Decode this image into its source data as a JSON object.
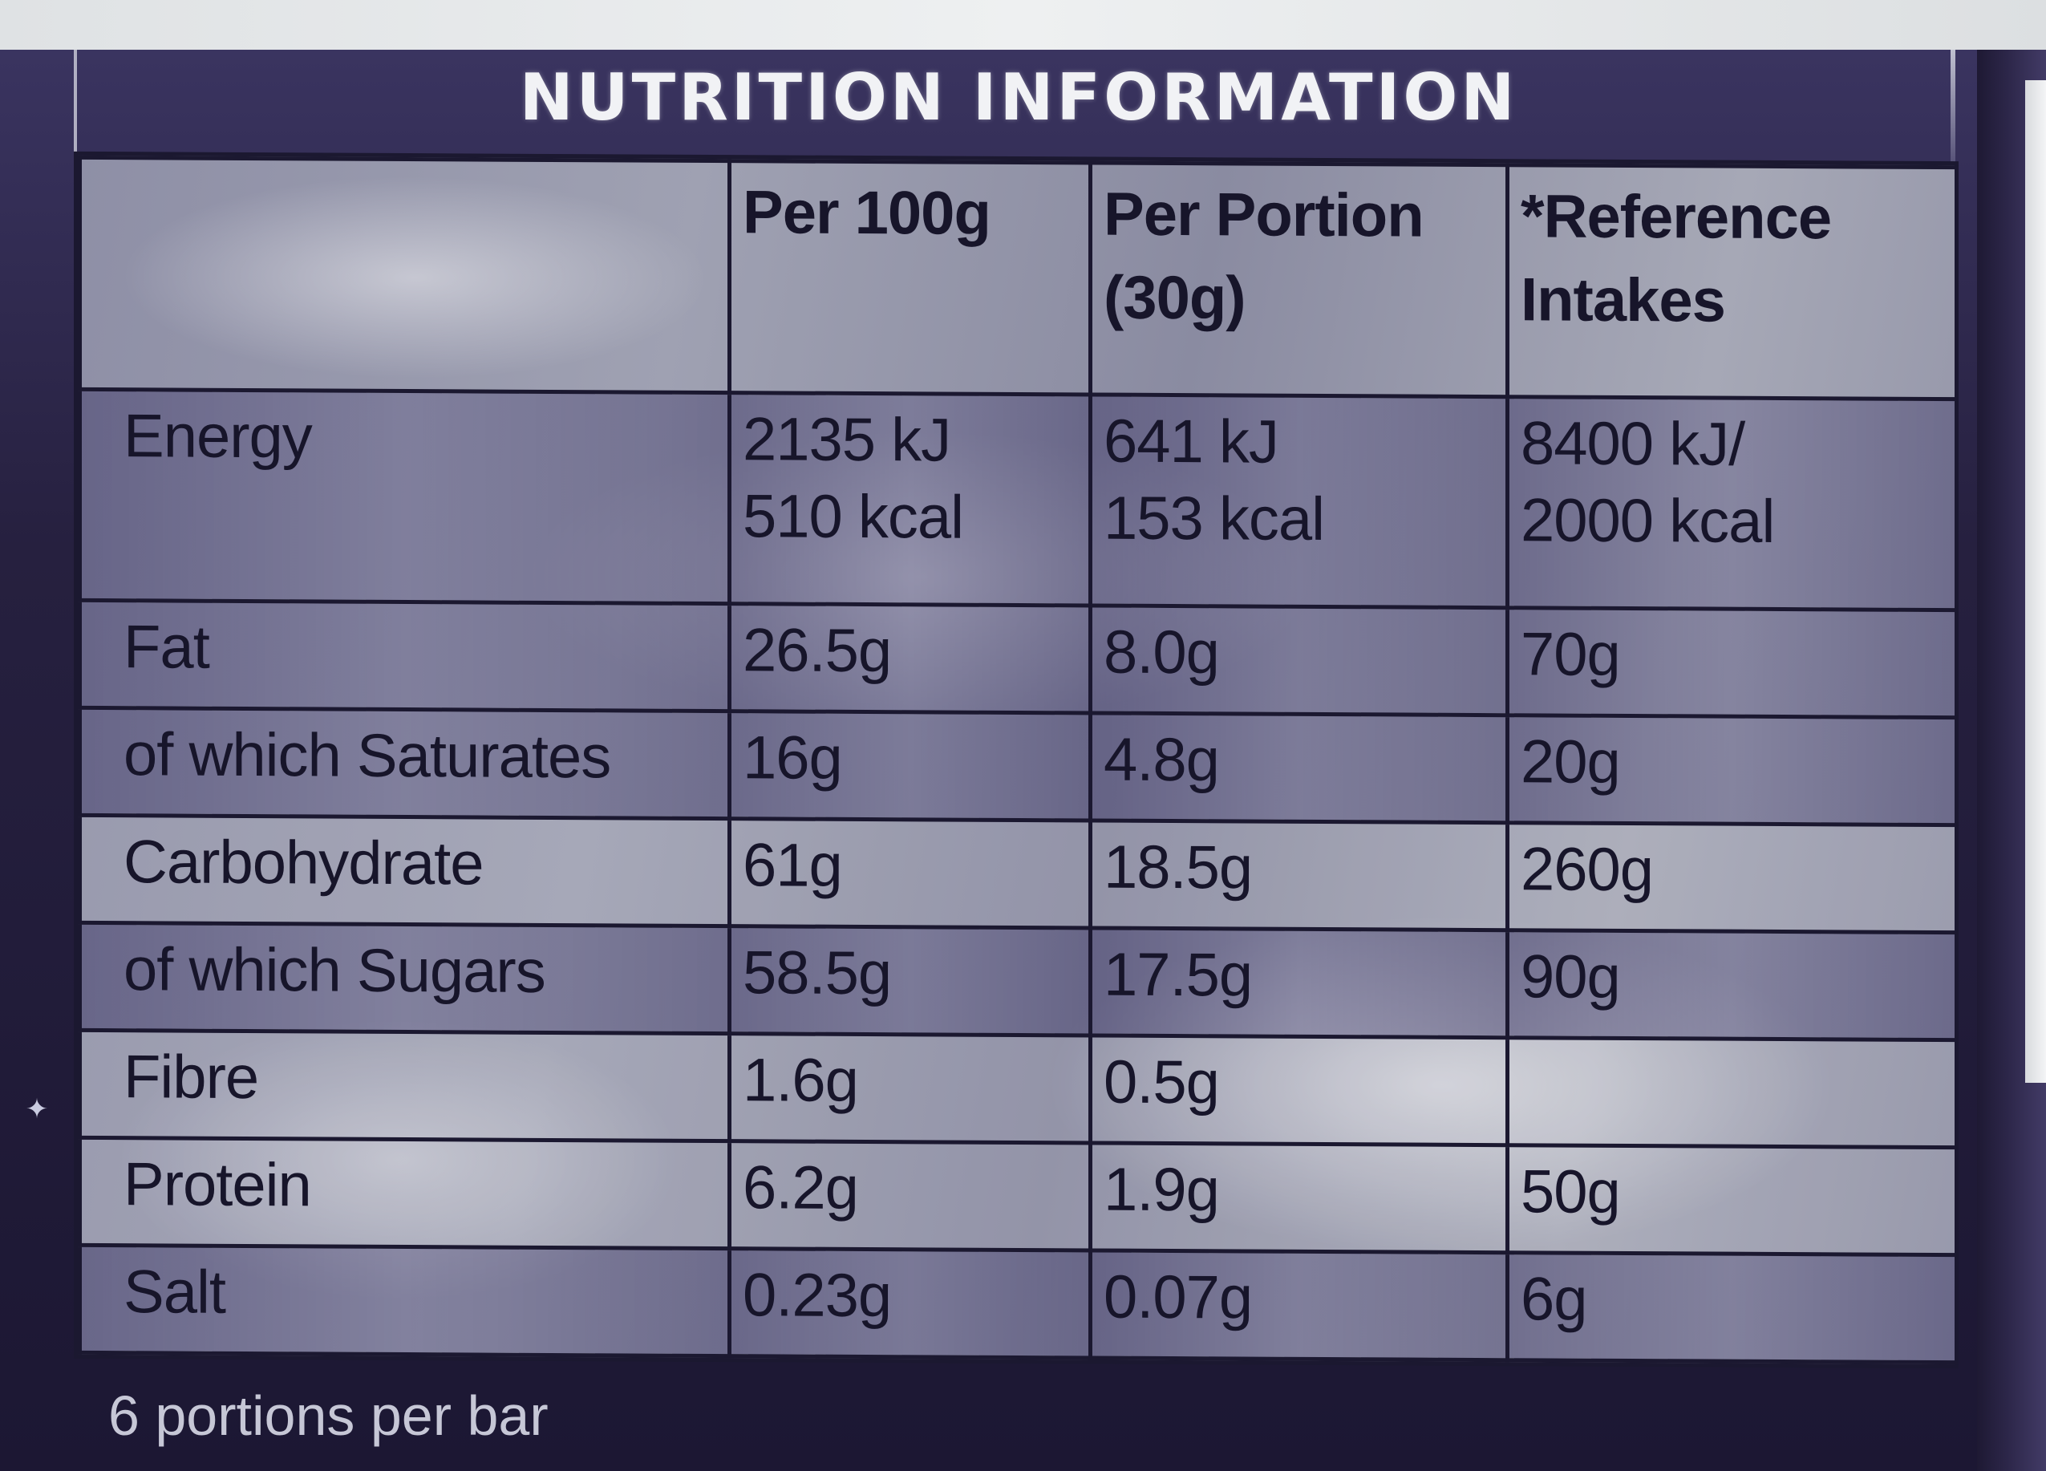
{
  "title": "NUTRITION INFORMATION",
  "table": {
    "headers": [
      "",
      "Per 100g",
      "Per Portion (30g)",
      "*Reference Intakes"
    ],
    "header_lines": {
      "per_100g": "Per 100g",
      "per_portion_1": "Per Portion",
      "per_portion_2": "(30g)",
      "reference_1": "*Reference",
      "reference_2": "Intakes"
    },
    "rows": [
      {
        "label": "Energy",
        "per_100g": [
          "2135 kJ",
          "510 kcal"
        ],
        "per_portion": [
          "641 kJ",
          "153 kcal"
        ],
        "reference": [
          "8400 kJ/",
          "2000 kcal"
        ]
      },
      {
        "label": "Fat",
        "per_100g": "26.5g",
        "per_portion": "8.0g",
        "reference": "70g"
      },
      {
        "label": "of which Saturates",
        "per_100g": "16g",
        "per_portion": "4.8g",
        "reference": "20g"
      },
      {
        "label": "Carbohydrate",
        "per_100g": "61g",
        "per_portion": "18.5g",
        "reference": "260g"
      },
      {
        "label": "of which Sugars",
        "per_100g": "58.5g",
        "per_portion": "17.5g",
        "reference": "90g"
      },
      {
        "label": "Fibre",
        "per_100g": "1.6g",
        "per_portion": "0.5g",
        "reference": ""
      },
      {
        "label": "Protein",
        "per_100g": "6.2g",
        "per_portion": "1.9g",
        "reference": "50g"
      },
      {
        "label": "Salt",
        "per_100g": "0.23g",
        "per_portion": "0.07g",
        "reference": "6g"
      }
    ]
  },
  "footer": "6 portions per bar",
  "decor": {
    "sparkle_icon": "✦",
    "wrapper_color": "#26203f",
    "table_color": "#9fa1b2"
  }
}
